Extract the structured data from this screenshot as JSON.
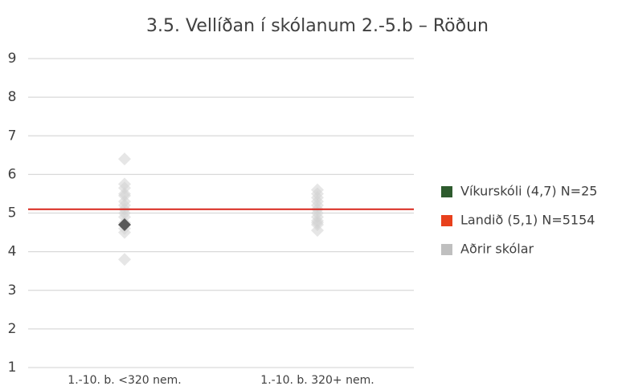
{
  "chart_data": {
    "type": "strip",
    "title": "3.5. Vellíðan í skólanum 2.-5.b – Röðun",
    "categories": [
      "1.-10. b. <320 nem.",
      "1.-10. b. 320+ nem."
    ],
    "ylim": [
      1,
      9
    ],
    "yticks": [
      1,
      2,
      3,
      4,
      5,
      6,
      7,
      8,
      9
    ],
    "grid": true,
    "legend": "right",
    "series": [
      {
        "name": "Aðrir skólar",
        "color": "#d2d2d2",
        "legend_color": "#bfbfbf",
        "mark": "diamond",
        "values": [
          [
            6.4,
            5.75,
            5.65,
            5.5,
            5.45,
            5.3,
            5.2,
            5.1,
            5.0,
            4.9,
            4.75,
            4.6,
            4.5,
            3.8
          ],
          [
            5.6,
            5.5,
            5.4,
            5.3,
            5.2,
            5.1,
            5.0,
            4.9,
            4.8,
            4.75,
            4.7,
            4.55
          ]
        ]
      },
      {
        "name": "Landið (5,1) N=5154",
        "color": "#d8261c",
        "legend_color": "#e8401c",
        "mark": "hline",
        "values": [
          5.1
        ]
      },
      {
        "name": "Víkurskóli (4,7) N=25",
        "color": "#595959",
        "legend_color": "#2e5b2e",
        "mark": "diamond",
        "values": [
          [
            4.7
          ],
          []
        ]
      }
    ],
    "legend_order": [
      2,
      1,
      0
    ]
  }
}
